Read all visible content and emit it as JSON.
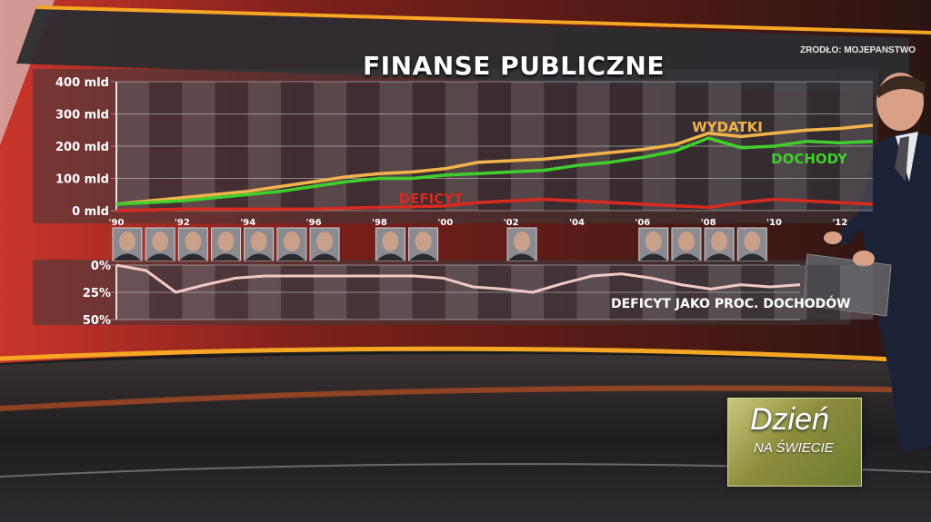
{
  "title": "FINANSE PUBLICZNE",
  "source": "ŹRÓDŁO: MOJEPANSTWO",
  "logo": {
    "main": "Dzień",
    "sub": "NA ŚWIECIE"
  },
  "colors": {
    "wydatki": "#f2b44a",
    "dochody": "#3fcf2c",
    "deficyt": "#d82a1e",
    "deficit_pct": "#f1c9c4",
    "accent_band": "#f5a623"
  },
  "chart_data": [
    {
      "type": "line",
      "x": [
        1990,
        1991,
        1992,
        1993,
        1994,
        1995,
        1996,
        1997,
        1998,
        1999,
        2000,
        2001,
        2002,
        2003,
        2004,
        2005,
        2006,
        2007,
        2008,
        2009,
        2010,
        2011,
        2012,
        2013
      ],
      "xticks": [
        "'90",
        "'92",
        "'94",
        "'96",
        "'98",
        "'00",
        "'02",
        "'04",
        "'06",
        "'08",
        "'10",
        "'12"
      ],
      "yticks": [
        "0 mld",
        "100 mld",
        "200 mld",
        "300 mld",
        "400 mld"
      ],
      "ylim": [
        0,
        400
      ],
      "series": [
        {
          "name": "WYDATKI",
          "color": "#f2b44a",
          "values": [
            20,
            30,
            40,
            50,
            60,
            75,
            90,
            105,
            115,
            120,
            130,
            150,
            155,
            160,
            170,
            180,
            190,
            205,
            240,
            230,
            240,
            250,
            255,
            265
          ]
        },
        {
          "name": "DOCHODY",
          "color": "#3fcf2c",
          "values": [
            20,
            25,
            30,
            40,
            50,
            60,
            75,
            90,
            100,
            100,
            110,
            115,
            120,
            125,
            140,
            150,
            165,
            185,
            225,
            195,
            200,
            215,
            210,
            215
          ]
        },
        {
          "name": "DEFICYT",
          "color": "#d82a1e",
          "values": [
            0,
            2,
            5,
            5,
            5,
            5,
            5,
            8,
            10,
            12,
            15,
            25,
            30,
            35,
            30,
            25,
            20,
            15,
            10,
            25,
            35,
            30,
            25,
            20
          ]
        }
      ]
    },
    {
      "type": "line",
      "x": [
        1990,
        1991,
        1992,
        1993,
        1994,
        1995,
        1996,
        1997,
        1998,
        1999,
        2000,
        2001,
        2002,
        2003,
        2004,
        2005,
        2006,
        2007,
        2008,
        2009,
        2010,
        2011,
        2012,
        2013
      ],
      "yticks": [
        "0%",
        "25%",
        "50%"
      ],
      "ylim": [
        0,
        50
      ],
      "series": [
        {
          "name": "DEFICYT JAKO PROC. DOCHODÓW",
          "color": "#f1c9c4",
          "values": [
            0,
            5,
            25,
            18,
            12,
            10,
            10,
            10,
            10,
            10,
            10,
            12,
            20,
            22,
            25,
            17,
            10,
            8,
            12,
            18,
            22,
            18,
            20,
            18
          ]
        }
      ]
    }
  ]
}
